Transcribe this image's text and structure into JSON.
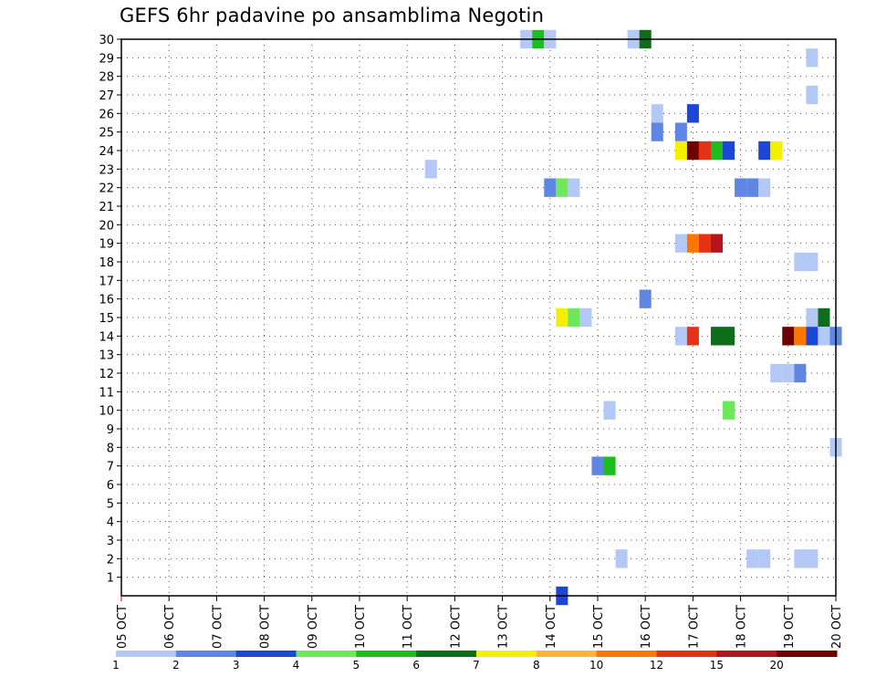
{
  "chart_data": {
    "type": "heatmap",
    "title": "GEFS 6hr padavine po ansamblima Negotin",
    "x_ticks": [
      "05 OCT",
      "06 OCT",
      "07 OCT",
      "08 OCT",
      "09 OCT",
      "10 OCT",
      "11 OCT",
      "12 OCT",
      "13 OCT",
      "14 OCT",
      "15 OCT",
      "16 OCT",
      "17 OCT",
      "18 OCT",
      "19 OCT",
      "20 OCT"
    ],
    "xlim": [
      0,
      60
    ],
    "y_ticks": [
      1,
      2,
      3,
      4,
      5,
      6,
      7,
      8,
      9,
      10,
      11,
      12,
      13,
      14,
      15,
      16,
      17,
      18,
      19,
      20,
      21,
      22,
      23,
      24,
      25,
      26,
      27,
      28,
      29,
      30
    ],
    "ylim": [
      0,
      30
    ],
    "grid": true,
    "legend": {
      "position": "bottom",
      "labels": [
        "1",
        "2",
        "3",
        "4",
        "5",
        "6",
        "7",
        "8",
        "10",
        "12",
        "15",
        "20"
      ],
      "colors": [
        "#b4c8f5",
        "#5f86e3",
        "#1c46d6",
        "#6ee85a",
        "#1cbd1c",
        "#0d6e1a",
        "#f5f000",
        "#ffb432",
        "#fa7800",
        "#e63214",
        "#b4141e",
        "#6e0000"
      ]
    },
    "cells": [
      {
        "member": 30,
        "step": 34,
        "class": 1
      },
      {
        "member": 30,
        "step": 35,
        "class": 5
      },
      {
        "member": 30,
        "step": 36,
        "class": 1
      },
      {
        "member": 30,
        "step": 43,
        "class": 1
      },
      {
        "member": 30,
        "step": 44,
        "class": 6
      },
      {
        "member": 29,
        "step": 58,
        "class": 1
      },
      {
        "member": 27,
        "step": 58,
        "class": 1
      },
      {
        "member": 26,
        "step": 45,
        "class": 1
      },
      {
        "member": 26,
        "step": 48,
        "class": 3
      },
      {
        "member": 25,
        "step": 45,
        "class": 2
      },
      {
        "member": 25,
        "step": 47,
        "class": 2
      },
      {
        "member": 24,
        "step": 47,
        "class": 7
      },
      {
        "member": 24,
        "step": 48,
        "class": 12
      },
      {
        "member": 24,
        "step": 49,
        "class": 10
      },
      {
        "member": 24,
        "step": 50,
        "class": 5
      },
      {
        "member": 24,
        "step": 51,
        "class": 3
      },
      {
        "member": 24,
        "step": 54,
        "class": 3
      },
      {
        "member": 24,
        "step": 55,
        "class": 7
      },
      {
        "member": 23,
        "step": 26,
        "class": 1
      },
      {
        "member": 22,
        "step": 36,
        "class": 2
      },
      {
        "member": 22,
        "step": 37,
        "class": 4
      },
      {
        "member": 22,
        "step": 38,
        "class": 1
      },
      {
        "member": 22,
        "step": 52,
        "class": 2
      },
      {
        "member": 22,
        "step": 53,
        "class": 2
      },
      {
        "member": 22,
        "step": 54,
        "class": 1
      },
      {
        "member": 19,
        "step": 47,
        "class": 1
      },
      {
        "member": 19,
        "step": 48,
        "class": 9
      },
      {
        "member": 19,
        "step": 49,
        "class": 10
      },
      {
        "member": 19,
        "step": 50,
        "class": 11
      },
      {
        "member": 18,
        "step": 57,
        "class": 1
      },
      {
        "member": 18,
        "step": 58,
        "class": 1
      },
      {
        "member": 16,
        "step": 44,
        "class": 2
      },
      {
        "member": 15,
        "step": 37,
        "class": 7
      },
      {
        "member": 15,
        "step": 38,
        "class": 4
      },
      {
        "member": 15,
        "step": 39,
        "class": 1
      },
      {
        "member": 15,
        "step": 58,
        "class": 1
      },
      {
        "member": 15,
        "step": 59,
        "class": 6
      },
      {
        "member": 14,
        "step": 47,
        "class": 1
      },
      {
        "member": 14,
        "step": 48,
        "class": 10
      },
      {
        "member": 14,
        "step": 50,
        "class": 6
      },
      {
        "member": 14,
        "step": 51,
        "class": 6
      },
      {
        "member": 14,
        "step": 56,
        "class": 12
      },
      {
        "member": 14,
        "step": 57,
        "class": 9
      },
      {
        "member": 14,
        "step": 58,
        "class": 3
      },
      {
        "member": 14,
        "step": 59,
        "class": 1
      },
      {
        "member": 14,
        "step": 60,
        "class": 2
      },
      {
        "member": 12,
        "step": 55,
        "class": 1
      },
      {
        "member": 12,
        "step": 56,
        "class": 1
      },
      {
        "member": 12,
        "step": 57,
        "class": 2
      },
      {
        "member": 10,
        "step": 41,
        "class": 1
      },
      {
        "member": 10,
        "step": 51,
        "class": 4
      },
      {
        "member": 8,
        "step": 60,
        "class": 1
      },
      {
        "member": 7,
        "step": 40,
        "class": 2
      },
      {
        "member": 7,
        "step": 41,
        "class": 5
      },
      {
        "member": 2,
        "step": 42,
        "class": 1
      },
      {
        "member": 2,
        "step": 53,
        "class": 1
      },
      {
        "member": 2,
        "step": 54,
        "class": 1
      },
      {
        "member": 2,
        "step": 57,
        "class": 1
      },
      {
        "member": 2,
        "step": 58,
        "class": 1
      },
      {
        "member": 0,
        "step": 37,
        "class": 3
      }
    ]
  }
}
